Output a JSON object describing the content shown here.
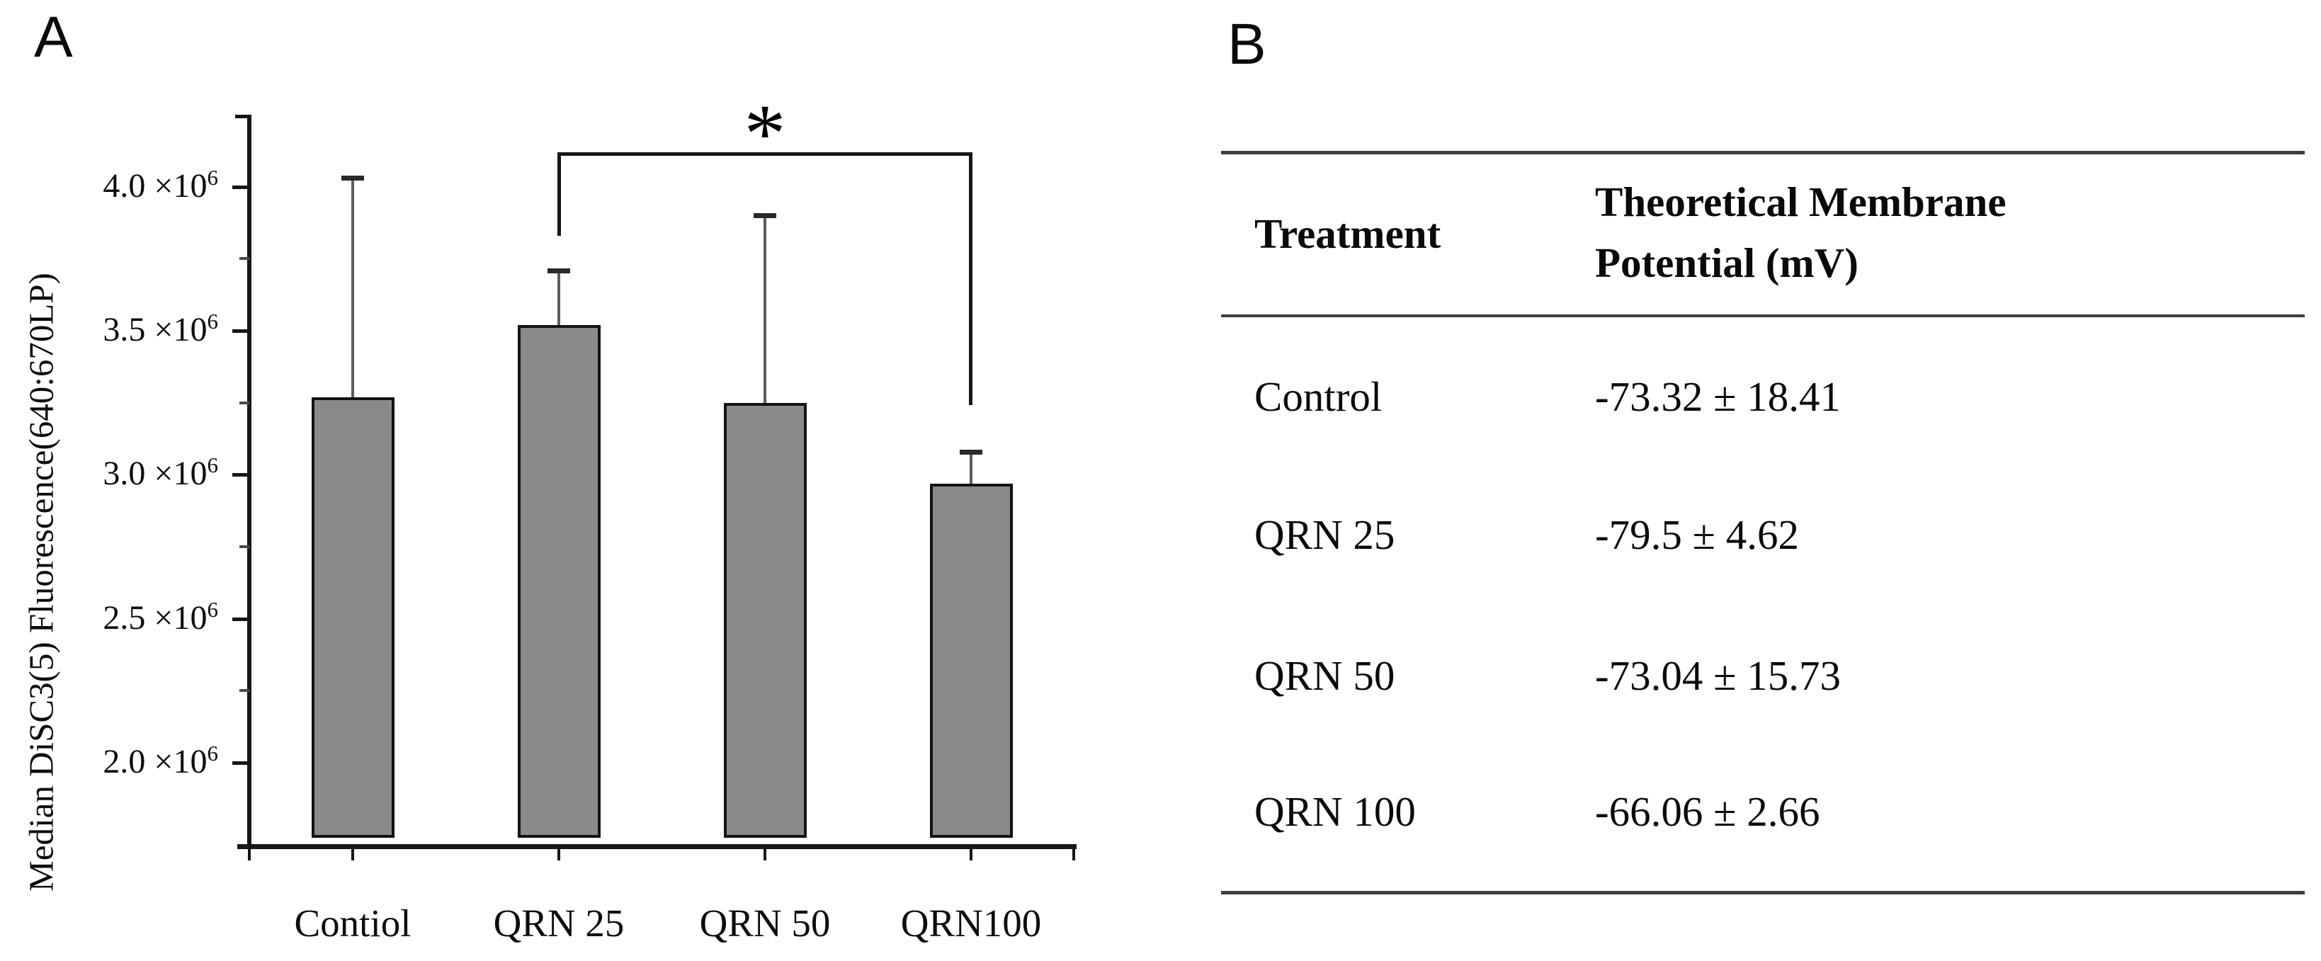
{
  "panel_a": {
    "label": "A"
  },
  "panel_b": {
    "label": "B",
    "table": {
      "header": {
        "col1": "Treatment",
        "col2_line1": "Theoretical Membrane",
        "col2_line2": "Potential (mV)"
      },
      "rows": [
        {
          "treatment": "Control",
          "potential": "-73.32 ± 18.41"
        },
        {
          "treatment": "QRN 25",
          "potential": "-79.5 ± 4.62"
        },
        {
          "treatment": "QRN 50",
          "potential": "-73.04 ± 15.73"
        },
        {
          "treatment": "QRN 100",
          "potential": "-66.06 ± 2.66"
        }
      ]
    }
  },
  "chart_data": {
    "type": "bar",
    "categories": [
      "Contiol",
      "QRN 25",
      "QRN 50",
      "QRN100"
    ],
    "values": [
      3270000,
      3520000,
      3250000,
      2970000
    ],
    "error_top_values": [
      4030000,
      3710000,
      3900000,
      3080000
    ],
    "title": "",
    "xlabel": "",
    "ylabel": "Median DiSC3(5) Fluorescence(640:670LP)",
    "ylim": [
      1710000,
      4250000
    ],
    "yticks": [
      {
        "value": 4000000,
        "label": "4.0"
      },
      {
        "value": 3500000,
        "label": "3.5"
      },
      {
        "value": 3000000,
        "label": "3.0"
      },
      {
        "value": 2500000,
        "label": "2.5"
      },
      {
        "value": 2000000,
        "label": "2.0"
      }
    ],
    "ytick_suffix": " ×10",
    "ytick_exponent": "6",
    "grid": false,
    "legend": null,
    "bar_color": "#8a8a8a",
    "significance": {
      "between": [
        "QRN 25",
        "QRN100"
      ],
      "label": "*"
    }
  }
}
